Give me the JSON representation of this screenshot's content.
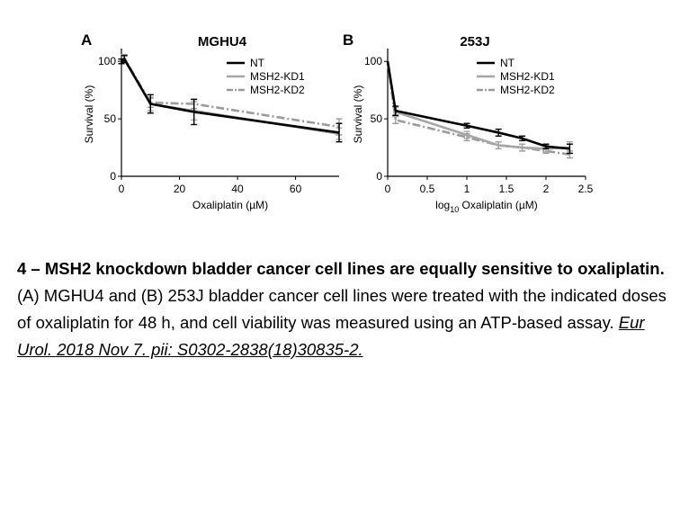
{
  "chart_data": [
    {
      "type": "line",
      "panel_label": "A",
      "title": "MGHU4",
      "xlabel": "Oxaliplatin (µM)",
      "ylabel": "Survival (%)",
      "xlim": [
        0,
        75
      ],
      "ylim": [
        0,
        108
      ],
      "xticks": [
        "0",
        "20",
        "40",
        "60"
      ],
      "yticks": [
        "0",
        "50",
        "100"
      ],
      "legend_position": "top-right",
      "series": [
        {
          "name": "NT",
          "color": "#000000",
          "style": "solid",
          "x": [
            0,
            1,
            10,
            25,
            75
          ],
          "y": [
            100,
            102,
            63,
            56,
            38
          ],
          "err": [
            2,
            3,
            8,
            11,
            8
          ]
        },
        {
          "name": "MSH2-KD1",
          "color": "#a6a6a6",
          "style": "solid",
          "x": [
            0,
            1,
            10,
            25,
            75
          ],
          "y": [
            100,
            102,
            63,
            57,
            37
          ],
          "err": [
            2,
            3,
            6,
            8,
            5
          ]
        },
        {
          "name": "MSH2-KD2",
          "color": "#9a9a9a",
          "style": "dashdot",
          "x": [
            0,
            1,
            10,
            25,
            75
          ],
          "y": [
            100,
            103,
            64,
            63,
            43
          ],
          "err": [
            2,
            3,
            4,
            4,
            7
          ]
        }
      ]
    },
    {
      "type": "line",
      "panel_label": "B",
      "title": "253J",
      "xlabel": "log10 Oxaliplatin (µM)",
      "xlabel_parts": [
        "log",
        "10",
        " Oxaliplatin (µM)"
      ],
      "ylabel": "Survival (%)",
      "xlim": [
        0,
        2.5
      ],
      "ylim": [
        0,
        108
      ],
      "xticks": [
        "0",
        "0.5",
        "1",
        "1.5",
        "2",
        "2.5"
      ],
      "yticks": [
        "0",
        "50",
        "100"
      ],
      "legend_position": "top-right",
      "series": [
        {
          "name": "NT",
          "color": "#000000",
          "style": "solid",
          "x": [
            0,
            0.1,
            1,
            1.4,
            1.7,
            2,
            2.3
          ],
          "y": [
            100,
            57,
            44,
            38,
            33,
            26,
            24
          ],
          "err": [
            0,
            4,
            2,
            3,
            2,
            2,
            4
          ]
        },
        {
          "name": "MSH2-KD1",
          "color": "#a6a6a6",
          "style": "solid",
          "x": [
            0,
            0.1,
            1,
            1.4,
            1.7,
            2,
            2.3
          ],
          "y": [
            100,
            56,
            36,
            27,
            25,
            24,
            25
          ],
          "err": [
            0,
            4,
            3,
            3,
            3,
            3,
            5
          ]
        },
        {
          "name": "MSH2-KD2",
          "color": "#9a9a9a",
          "style": "dashdot",
          "x": [
            0,
            0.1,
            1,
            1.4,
            1.7,
            2,
            2.3
          ],
          "y": [
            100,
            49,
            34,
            27,
            25,
            22,
            19
          ],
          "err": [
            0,
            3,
            3,
            3,
            3,
            2,
            3
          ]
        }
      ]
    }
  ],
  "caption": {
    "heading": "4 – MSH2 knockdown bladder cancer cell lines are equally sensitive to oxaliplatin.",
    "body": "(A) MGHU4 and (B) 253J bladder cancer cell lines were treated with the indicated doses of oxaliplatin for 48 h, and cell viability was measured using an ATP-based assay. ",
    "citation": "Eur Urol. 2018 Nov 7. pii: S0302-2838(18)30835-2."
  }
}
